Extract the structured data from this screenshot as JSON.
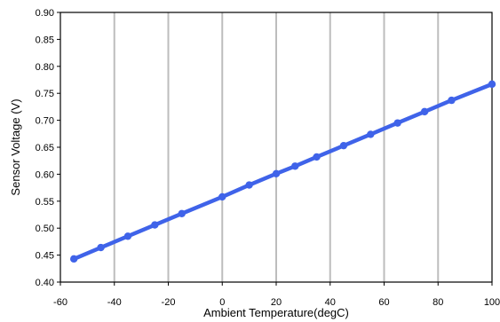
{
  "chart_data": {
    "type": "line",
    "xlabel": "Ambient Temperature(degC)",
    "ylabel": "Sensor Voltage (V)",
    "xlim": [
      -60,
      100
    ],
    "ylim": [
      0.4,
      0.9
    ],
    "x_ticks": [
      -60,
      -40,
      -20,
      0,
      20,
      40,
      60,
      80,
      100
    ],
    "x_tick_labels": [
      "-60",
      "-40",
      "-20",
      "0",
      "20",
      "40",
      "60",
      "80",
      "100"
    ],
    "y_ticks": [
      0.4,
      0.45,
      0.5,
      0.55,
      0.6,
      0.65,
      0.7,
      0.75,
      0.8,
      0.85,
      0.9
    ],
    "y_tick_labels": [
      "0.40",
      "0.45",
      "0.50",
      "0.55",
      "0.60",
      "0.65",
      "0.70",
      "0.75",
      "0.80",
      "0.85",
      "0.90"
    ],
    "grid": "vertical",
    "legend": "none",
    "series": [
      {
        "color": "#3f63e9",
        "x": [
          -55,
          -45,
          -35,
          -25,
          -15,
          0,
          10,
          20,
          27,
          35,
          45,
          55,
          65,
          75,
          85,
          100
        ],
        "y": [
          0.443,
          0.464,
          0.485,
          0.506,
          0.527,
          0.558,
          0.58,
          0.601,
          0.615,
          0.632,
          0.653,
          0.674,
          0.695,
          0.716,
          0.737,
          0.767
        ]
      }
    ]
  }
}
